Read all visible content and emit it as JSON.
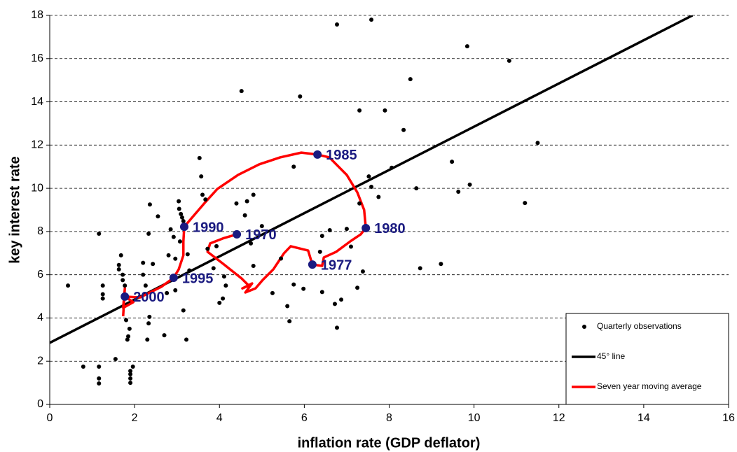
{
  "chart_data": {
    "type": "scatter",
    "x_label": "inflation rate (GDP deflator)",
    "y_label": "key interest rate",
    "xlim": [
      0,
      16
    ],
    "xticks": [
      0,
      2,
      4,
      6,
      8,
      10,
      12,
      14,
      16
    ],
    "ylim": [
      0,
      18
    ],
    "yticks": [
      0,
      2,
      4,
      6,
      8,
      10,
      12,
      14,
      16,
      18
    ],
    "grid": true,
    "legend": "lower right",
    "series": [
      {
        "name": "Quarterly observations",
        "type": "scatter",
        "color": "#000000",
        "x": [
          0.43,
          0.79,
          1.16,
          1.16,
          1.16,
          1.16,
          1.25,
          1.25,
          1.25,
          1.55,
          1.63,
          1.63,
          1.68,
          1.72,
          1.72,
          1.77,
          1.8,
          1.83,
          1.85,
          1.88,
          1.9,
          1.9,
          1.9,
          1.9,
          1.96,
          2.2,
          2.2,
          2.26,
          2.3,
          2.33,
          2.35,
          2.33,
          2.36,
          2.43,
          2.55,
          2.7,
          2.76,
          2.8,
          2.85,
          2.92,
          2.96,
          2.96,
          3.04,
          3.05,
          3.09,
          3.12,
          3.15,
          3.15,
          3.22,
          3.25,
          3.29,
          3.07,
          3.53,
          3.57,
          3.6,
          3.67,
          3.72,
          3.86,
          3.93,
          4.0,
          4.08,
          4.11,
          4.15,
          4.4,
          4.52,
          4.6,
          4.65,
          4.74,
          4.8,
          4.8,
          5.0,
          5.25,
          5.45,
          5.6,
          5.65,
          5.75,
          5.75,
          5.9,
          5.98,
          6.37,
          6.42,
          6.42,
          6.6,
          6.72,
          6.77,
          6.77,
          6.87,
          7.0,
          7.1,
          7.25,
          7.3,
          7.3,
          7.38,
          7.52,
          7.58,
          7.58,
          7.75,
          7.9,
          8.06,
          8.34,
          8.5,
          8.64,
          8.73,
          9.22,
          9.48,
          9.63,
          9.9,
          9.84,
          10.83,
          11.2,
          11.5
        ],
        "values": [
          5.5,
          1.75,
          0.97,
          1.2,
          1.75,
          7.9,
          5.5,
          5.1,
          4.9,
          2.1,
          6.45,
          6.25,
          6.9,
          5.75,
          6.0,
          5.5,
          3.9,
          3.0,
          3.15,
          3.5,
          1.4,
          1.55,
          1.0,
          1.2,
          1.75,
          6.0,
          6.55,
          5.5,
          3.0,
          3.75,
          4.05,
          7.9,
          9.25,
          6.5,
          8.7,
          3.2,
          5.15,
          6.9,
          8.1,
          7.75,
          6.74,
          5.28,
          9.4,
          9.05,
          8.81,
          8.65,
          8.48,
          4.35,
          3.0,
          6.95,
          6.2,
          7.54,
          11.4,
          10.55,
          9.7,
          9.48,
          7.2,
          6.3,
          7.32,
          4.7,
          4.9,
          5.92,
          5.5,
          9.3,
          14.5,
          8.75,
          9.4,
          7.45,
          9.7,
          6.41,
          8.25,
          5.15,
          6.75,
          4.55,
          3.85,
          5.55,
          11.0,
          14.25,
          5.35,
          7.06,
          5.2,
          7.8,
          8.06,
          4.65,
          3.55,
          17.58,
          4.85,
          8.12,
          7.3,
          5.4,
          13.6,
          9.3,
          6.15,
          10.55,
          10.07,
          17.8,
          9.6,
          13.6,
          10.95,
          12.7,
          15.05,
          10.0,
          6.3,
          6.5,
          11.23,
          9.84,
          10.17,
          16.57,
          15.9,
          9.32,
          12.1
        ]
      },
      {
        "name": "45° line",
        "type": "line",
        "color": "#000000",
        "x": [
          0,
          15.15
        ],
        "values": [
          2.85,
          18
        ]
      },
      {
        "name": "Seven year moving average",
        "type": "line",
        "color": "#ff0000",
        "x": [
          4.41,
          4.11,
          3.78,
          3.72,
          4.11,
          4.52,
          4.69,
          4.54,
          4.77,
          4.61,
          4.85,
          5.02,
          5.27,
          5.52,
          5.68,
          6.09,
          6.19,
          6.42,
          6.46,
          6.75,
          7.08,
          7.33,
          7.45,
          7.41,
          7.25,
          7.0,
          6.59,
          6.31,
          5.93,
          5.43,
          4.94,
          4.44,
          3.95,
          3.65,
          3.37,
          3.17,
          3.15,
          3.15,
          3.04,
          2.92,
          2.63,
          2.13,
          1.77,
          1.97,
          1.73,
          1.77,
          1.73
        ],
        "values": [
          7.87,
          7.7,
          7.45,
          7.06,
          6.47,
          5.83,
          5.5,
          5.37,
          5.6,
          5.18,
          5.37,
          5.76,
          6.25,
          6.99,
          7.32,
          7.12,
          6.47,
          6.41,
          6.8,
          7.06,
          7.54,
          7.87,
          8.16,
          9.0,
          9.81,
          10.62,
          11.43,
          11.56,
          11.65,
          11.43,
          11.11,
          10.62,
          9.97,
          9.32,
          8.68,
          8.22,
          7.54,
          6.9,
          6.25,
          5.86,
          5.44,
          4.95,
          4.99,
          4.73,
          4.47,
          5.37,
          4.08
        ]
      }
    ],
    "annotations_color": "#1a1a80",
    "annotations": [
      {
        "text": "1970",
        "x": 4.41,
        "y": 7.87
      },
      {
        "text": "1977",
        "x": 6.19,
        "y": 6.47
      },
      {
        "text": "1980",
        "x": 7.45,
        "y": 8.16
      },
      {
        "text": "1985",
        "x": 6.31,
        "y": 11.56
      },
      {
        "text": "1990",
        "x": 3.17,
        "y": 8.22
      },
      {
        "text": "1995",
        "x": 2.92,
        "y": 5.86
      },
      {
        "text": "2000",
        "x": 1.77,
        "y": 4.99
      }
    ]
  }
}
